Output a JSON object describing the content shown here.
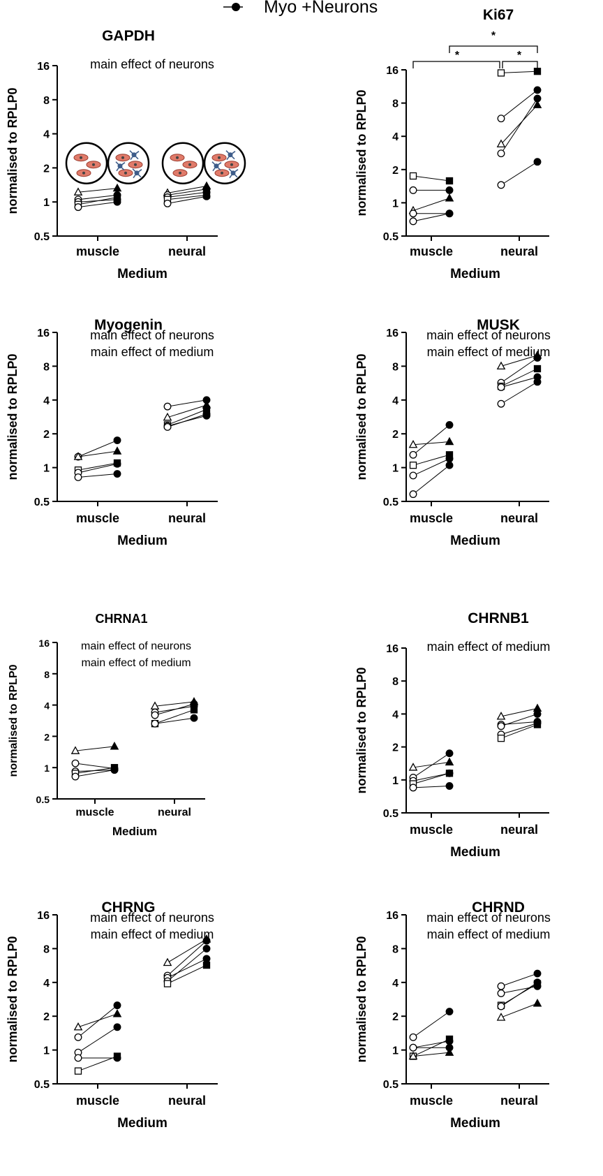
{
  "legend": {
    "label": "Myo +Neurons"
  },
  "common": {
    "ylabel": "normalised to RPLP0",
    "xlabel": "Medium",
    "categories": [
      "muscle",
      "neural"
    ],
    "yticks": [
      "0.5",
      "1",
      "2",
      "4",
      "8",
      "16"
    ]
  },
  "chart_data": [
    {
      "type": "scatter",
      "title": "GAPDH",
      "annotations": [
        "main effect of neurons"
      ],
      "yscale": "log2",
      "ylim": [
        0.5,
        16
      ],
      "markers_by_pair": [
        "triangle",
        "circle",
        "circle",
        "square",
        "circle"
      ],
      "muscle": [
        [
          1.22,
          1.32
        ],
        [
          1.05,
          1.15
        ],
        [
          1.0,
          1.05
        ],
        [
          0.95,
          1.1
        ],
        [
          0.9,
          1.0
        ]
      ],
      "neural": [
        [
          1.2,
          1.38
        ],
        [
          1.15,
          1.3
        ],
        [
          1.1,
          1.22
        ],
        [
          1.05,
          1.15
        ],
        [
          0.97,
          1.12
        ]
      ],
      "illustration": "cell-culture-schematic"
    },
    {
      "type": "scatter",
      "title": "Ki67",
      "annotations": [],
      "significance": [
        "*",
        "*",
        "*"
      ],
      "yscale": "log2",
      "ylim": [
        0.5,
        16
      ],
      "markers_by_pair": [
        "square",
        "circle",
        "triangle",
        "circle",
        "circle"
      ],
      "muscle": [
        [
          1.75,
          1.58
        ],
        [
          1.3,
          1.3
        ],
        [
          0.85,
          1.1
        ],
        [
          0.8,
          0.8
        ],
        [
          0.68,
          0.8
        ]
      ],
      "neural": [
        [
          15.0,
          15.5
        ],
        [
          5.8,
          10.5
        ],
        [
          3.4,
          7.7
        ],
        [
          2.8,
          8.8
        ],
        [
          1.45,
          2.35
        ]
      ]
    },
    {
      "type": "scatter",
      "title": "Myogenin",
      "annotations": [
        "main effect of neurons",
        "main effect of medium"
      ],
      "yscale": "log2",
      "ylim": [
        0.5,
        16
      ],
      "markers_by_pair": [
        "circle",
        "triangle",
        "square",
        "circle",
        "circle"
      ],
      "muscle": [
        [
          1.25,
          1.75
        ],
        [
          1.25,
          1.4
        ],
        [
          0.95,
          1.1
        ],
        [
          0.9,
          1.08
        ],
        [
          0.82,
          0.88
        ]
      ],
      "neural": [
        [
          3.5,
          4.0
        ],
        [
          2.8,
          3.6
        ],
        [
          2.4,
          3.3
        ],
        [
          2.35,
          2.9
        ],
        [
          2.3,
          3.0
        ]
      ]
    },
    {
      "type": "scatter",
      "title": "MUSK",
      "annotations": [
        "main effect of neurons",
        "main effect of medium"
      ],
      "yscale": "log2",
      "ylim": [
        0.5,
        16
      ],
      "markers_by_pair": [
        "triangle",
        "circle",
        "square",
        "circle",
        "circle"
      ],
      "muscle": [
        [
          1.6,
          1.7
        ],
        [
          1.3,
          2.4
        ],
        [
          1.05,
          1.3
        ],
        [
          0.85,
          1.2
        ],
        [
          0.58,
          1.05
        ]
      ],
      "neural": [
        [
          8.0,
          10.0
        ],
        [
          5.7,
          9.5
        ],
        [
          5.3,
          7.6
        ],
        [
          5.2,
          6.4
        ],
        [
          3.7,
          5.8
        ]
      ]
    },
    {
      "type": "scatter",
      "title": "CHRNA1",
      "annotations": [
        "main effect of neurons",
        "main effect of medium"
      ],
      "yscale": "log2",
      "ylim": [
        0.5,
        16
      ],
      "markers_by_pair": [
        "triangle",
        "circle",
        "circle",
        "square",
        "circle"
      ],
      "muscle": [
        [
          1.45,
          1.6
        ],
        [
          1.1,
          0.98
        ],
        [
          0.92,
          0.95
        ],
        [
          0.88,
          1.0
        ],
        [
          0.82,
          0.95
        ]
      ],
      "neural": [
        [
          3.9,
          4.3
        ],
        [
          3.4,
          3.9
        ],
        [
          3.2,
          4.1
        ],
        [
          2.65,
          3.6
        ],
        [
          2.65,
          3.0
        ]
      ]
    },
    {
      "type": "scatter",
      "title": "CHRNB1",
      "annotations": [
        "main effect of medium"
      ],
      "yscale": "log2",
      "ylim": [
        0.5,
        16
      ],
      "markers_by_pair": [
        "triangle",
        "circle",
        "circle",
        "square",
        "circle"
      ],
      "muscle": [
        [
          1.3,
          1.45
        ],
        [
          1.05,
          1.75
        ],
        [
          0.98,
          1.15
        ],
        [
          0.92,
          1.15
        ],
        [
          0.85,
          0.88
        ]
      ],
      "neural": [
        [
          3.8,
          4.5
        ],
        [
          3.2,
          3.4
        ],
        [
          2.6,
          3.3
        ],
        [
          2.4,
          3.2
        ],
        [
          3.1,
          4.0
        ]
      ]
    },
    {
      "type": "scatter",
      "title": "CHRNG",
      "annotations": [
        "main effect of neurons",
        "main effect of medium"
      ],
      "yscale": "log2",
      "ylim": [
        0.5,
        16
      ],
      "markers_by_pair": [
        "triangle",
        "circle",
        "circle",
        "circle",
        "square"
      ],
      "muscle": [
        [
          1.6,
          2.1
        ],
        [
          1.3,
          2.5
        ],
        [
          0.95,
          1.6
        ],
        [
          0.85,
          0.85
        ],
        [
          0.65,
          0.88
        ]
      ],
      "neural": [
        [
          6.0,
          9.7
        ],
        [
          4.6,
          9.4
        ],
        [
          4.4,
          6.5
        ],
        [
          4.1,
          8.0
        ],
        [
          3.9,
          5.7
        ]
      ]
    },
    {
      "type": "scatter",
      "title": "CHRND",
      "annotations": [
        "main effect of neurons",
        "main effect of medium"
      ],
      "yscale": "log2",
      "ylim": [
        0.5,
        16
      ],
      "markers_by_pair": [
        "circle",
        "circle",
        "square",
        "circle",
        "triangle"
      ],
      "muscle": [
        [
          1.3,
          2.2
        ],
        [
          1.05,
          1.05
        ],
        [
          0.88,
          1.25
        ],
        [
          1.05,
          1.2
        ],
        [
          0.88,
          0.95
        ]
      ],
      "neural": [
        [
          3.7,
          4.8
        ],
        [
          3.2,
          3.7
        ],
        [
          2.5,
          3.9
        ],
        [
          2.45,
          4.0
        ],
        [
          1.95,
          2.6
        ]
      ]
    }
  ]
}
